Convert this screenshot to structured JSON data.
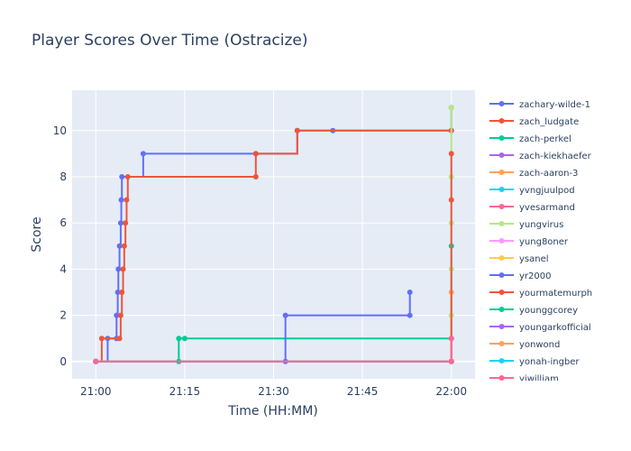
{
  "chart_data": {
    "type": "line",
    "line_shape": "step",
    "title": "Player Scores Over Time (Ostracize)",
    "xlabel": "Time (HH:MM)",
    "ylabel": "Score",
    "x_range": [
      "20:56",
      "22:04"
    ],
    "y_range": [
      -0.75,
      11.75
    ],
    "x_ticks": [
      "21:00",
      "21:15",
      "21:30",
      "21:45",
      "22:00"
    ],
    "y_ticks": [
      0,
      2,
      4,
      6,
      8,
      10
    ],
    "grid": true,
    "legend_position": "right",
    "colors": {
      "plot_background": "#e5ecf6",
      "grid": "#ffffff",
      "title": "#2a3f5f",
      "axis_text": "#2a3f5f"
    },
    "series": [
      {
        "name": "zachary-wilde-1",
        "color": "#636efa",
        "points": [
          [
            "21:00",
            0
          ],
          [
            "21:02",
            1
          ],
          [
            "21:03.5",
            1
          ],
          [
            "21:03.5",
            2
          ],
          [
            "21:03.7",
            3
          ],
          [
            "21:03.8",
            4
          ],
          [
            "21:04",
            5
          ],
          [
            "21:04.2",
            6
          ],
          [
            "21:04.3",
            7
          ],
          [
            "21:04.4",
            8
          ],
          [
            "21:08",
            9
          ],
          [
            "21:27",
            9
          ],
          [
            "21:34",
            10
          ],
          [
            "21:40",
            10
          ],
          [
            "22:00",
            10
          ],
          [
            "22:00",
            11
          ]
        ]
      },
      {
        "name": "zach_ludgate",
        "color": "#ef553b",
        "points": [
          [
            "21:00",
            0
          ],
          [
            "21:01",
            1
          ],
          [
            "21:04",
            1
          ],
          [
            "21:04.2",
            2
          ],
          [
            "21:04.4",
            3
          ],
          [
            "21:04.6",
            4
          ],
          [
            "21:04.8",
            5
          ],
          [
            "21:05",
            6
          ],
          [
            "21:05.2",
            7
          ],
          [
            "21:05.4",
            8
          ],
          [
            "21:27",
            8
          ],
          [
            "21:27",
            9
          ],
          [
            "21:34",
            10
          ],
          [
            "22:00",
            10
          ]
        ]
      },
      {
        "name": "zach-perkel",
        "color": "#00cc96",
        "points": [
          [
            "21:00",
            0
          ],
          [
            "21:14",
            0
          ],
          [
            "21:14",
            1
          ],
          [
            "21:15",
            1
          ],
          [
            "22:00",
            1
          ],
          [
            "22:00",
            5
          ]
        ]
      },
      {
        "name": "zach-kiekhaefer",
        "color": "#ab63fa",
        "points": [
          [
            "21:00",
            0
          ],
          [
            "22:00",
            0
          ]
        ]
      },
      {
        "name": "zach-aaron-3",
        "color": "#ffa15a",
        "points": [
          [
            "21:00",
            0
          ],
          [
            "22:00",
            0
          ],
          [
            "22:00",
            3
          ]
        ]
      },
      {
        "name": "yvngjuulpod",
        "color": "#19d3f3",
        "points": [
          [
            "21:00",
            0
          ],
          [
            "22:00",
            0
          ]
        ]
      },
      {
        "name": "yvesarmand",
        "color": "#ff6692",
        "points": [
          [
            "21:00",
            0
          ],
          [
            "22:00",
            0
          ],
          [
            "22:00",
            1
          ]
        ]
      },
      {
        "name": "yungvirus",
        "color": "#b6e880",
        "points": [
          [
            "21:00",
            0
          ],
          [
            "22:00",
            0
          ],
          [
            "22:00",
            2
          ],
          [
            "22:00",
            4
          ],
          [
            "22:00",
            6
          ],
          [
            "22:00",
            8
          ],
          [
            "22:00",
            11
          ]
        ]
      },
      {
        "name": "yung8oner",
        "color": "#ff97ff",
        "points": [
          [
            "21:00",
            0
          ],
          [
            "22:00",
            0
          ]
        ]
      },
      {
        "name": "ysanel",
        "color": "#fecb52",
        "points": [
          [
            "21:00",
            0
          ],
          [
            "22:00",
            0
          ]
        ]
      },
      {
        "name": "yr2000",
        "color": "#636efa",
        "points": [
          [
            "21:00",
            0
          ],
          [
            "21:32",
            0
          ],
          [
            "21:32",
            2
          ],
          [
            "21:53",
            2
          ],
          [
            "21:53",
            3
          ]
        ]
      },
      {
        "name": "yourmatemurph",
        "color": "#ef553b",
        "points": [
          [
            "21:00",
            0
          ],
          [
            "22:00",
            0
          ],
          [
            "22:00",
            7
          ],
          [
            "22:00",
            9
          ]
        ]
      },
      {
        "name": "younggcorey",
        "color": "#00cc96",
        "points": [
          [
            "21:00",
            0
          ],
          [
            "22:00",
            0
          ]
        ]
      },
      {
        "name": "youngarkofficial",
        "color": "#ab63fa",
        "points": [
          [
            "21:00",
            0
          ],
          [
            "22:00",
            0
          ]
        ]
      },
      {
        "name": "yonwond",
        "color": "#ffa15a",
        "points": [
          [
            "21:00",
            0
          ],
          [
            "22:00",
            0
          ]
        ]
      },
      {
        "name": "yonah-ingber",
        "color": "#19d3f3",
        "points": [
          [
            "21:00",
            0
          ],
          [
            "22:00",
            0
          ]
        ]
      },
      {
        "name": "yiwilliam",
        "color": "#ff6692",
        "points": [
          [
            "21:00",
            0
          ],
          [
            "22:00",
            0
          ],
          [
            "22:00",
            1
          ]
        ]
      }
    ]
  }
}
